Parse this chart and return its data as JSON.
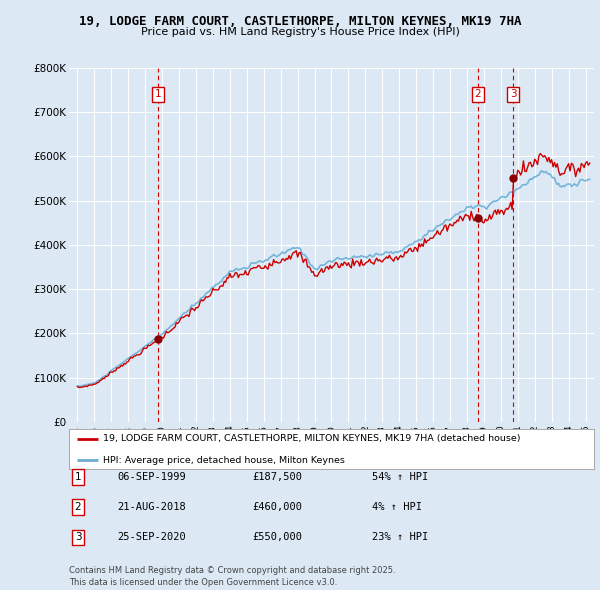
{
  "title_line1": "19, LODGE FARM COURT, CASTLETHORPE, MILTON KEYNES, MK19 7HA",
  "title_line2": "Price paid vs. HM Land Registry's House Price Index (HPI)",
  "background_color": "#dce9f5",
  "plot_bg_color": "#dce9f5",
  "grid_color": "#ffffff",
  "sale_dates_year": [
    1999.75,
    2018.63,
    2020.73
  ],
  "sale_prices": [
    187500,
    460000,
    550000
  ],
  "sale_labels": [
    "1",
    "2",
    "3"
  ],
  "legend_line1": "19, LODGE FARM COURT, CASTLETHORPE, MILTON KEYNES, MK19 7HA (detached house)",
  "legend_line2": "HPI: Average price, detached house, Milton Keynes",
  "table_rows": [
    [
      "1",
      "06-SEP-1999",
      "£187,500",
      "54% ↑ HPI"
    ],
    [
      "2",
      "21-AUG-2018",
      "£460,000",
      "4% ↑ HPI"
    ],
    [
      "3",
      "25-SEP-2020",
      "£550,000",
      "23% ↑ HPI"
    ]
  ],
  "footer": "Contains HM Land Registry data © Crown copyright and database right 2025.\nThis data is licensed under the Open Government Licence v3.0.",
  "hpi_color": "#6baed6",
  "price_color": "#cc0000",
  "vline_color": "#cc0000",
  "ylim_max": 800000,
  "ylim_min": 0,
  "xlim_min": 1994.5,
  "xlim_max": 2025.5
}
